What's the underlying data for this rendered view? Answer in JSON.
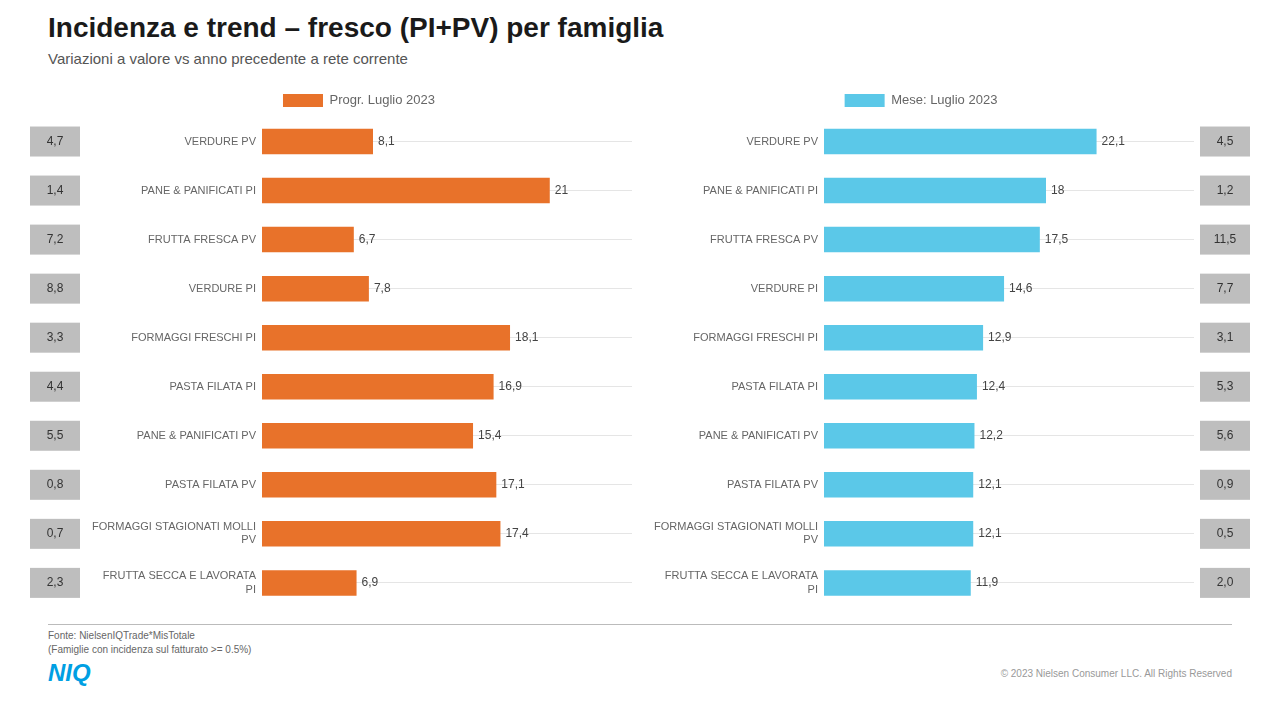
{
  "title": "Incidenza e trend – fresco (PI+PV) per famiglia",
  "subtitle": "Variazioni  a valore vs anno precedente a rete corrente",
  "annotations": [
    {
      "text": "Fonte: NielsenIQTrade*MisTotale\n(Famiglie con incidenza sul fatturato >= 0.5%)"
    },
    {
      "text": "NIQ",
      "color": "#009FE3"
    },
    {
      "text": "© 2023  Nielsen Consumer LLC. All Rights Reserved"
    }
  ],
  "chart_data": [
    {
      "type": "bar",
      "orientation": "horizontal",
      "categories": [
        "VERDURE PV",
        "PANE & PANIFICATI PI",
        "FRUTTA FRESCA PV",
        "VERDURE PI",
        "FORMAGGI FRESCHI PI",
        "PASTA FILATA PI",
        "PANE & PANIFICATI PV",
        "PASTA FILATA PV",
        "FORMAGGI STAGIONATI MOLLI\nPV",
        "FRUTTA SECCA E LAVORATA\nPI"
      ],
      "series": [
        {
          "name": "Progr. Luglio 2023",
          "color": "#E8722A",
          "values": [
            8.1,
            21,
            6.7,
            7.8,
            18.1,
            16.9,
            15.4,
            17.1,
            17.4,
            6.9
          ],
          "value_labels": [
            "8,1",
            "21",
            "6,7",
            "7,8",
            "18,1",
            "16,9",
            "15,4",
            "17,1",
            "17,4",
            "6,9"
          ]
        }
      ],
      "xlim": [
        0,
        27
      ],
      "data_labels": true,
      "tick_labels": "y",
      "grid": true,
      "legend": "top",
      "annotations": {
        "labels": [
          "4,7",
          "1,4",
          "7,2",
          "8,8",
          "3,3",
          "4,4",
          "5,5",
          "0,8",
          "0,7",
          "2,3"
        ],
        "color": "#BEBEBE"
      }
    },
    {
      "type": "bar",
      "orientation": "horizontal",
      "categories": [
        "VERDURE PV",
        "PANE & PANIFICATI PI",
        "FRUTTA FRESCA PV",
        "VERDURE PI",
        "FORMAGGI FRESCHI PI",
        "PASTA FILATA PI",
        "PANE & PANIFICATI PV",
        "PASTA FILATA PV",
        "FORMAGGI STAGIONATI MOLLI\nPV",
        "FRUTTA SECCA E LAVORATA\nPI"
      ],
      "series": [
        {
          "name": "Mese: Luglio 2023",
          "color": "#5BC8E8",
          "values": [
            22.1,
            18,
            17.5,
            14.6,
            12.9,
            12.4,
            12.2,
            12.1,
            12.1,
            11.9
          ],
          "value_labels": [
            "22,1",
            "18",
            "17,5",
            "14,6",
            "12,9",
            "12,4",
            "12,2",
            "12,1",
            "12,1",
            "11,9"
          ]
        }
      ],
      "xlim": [
        0,
        30
      ],
      "data_labels": true,
      "tick_labels": "y",
      "grid": true,
      "legend": "top",
      "annotations": {
        "labels": [
          "4,5",
          "1,2",
          "11,5",
          "7,7",
          "3,1",
          "5,3",
          "5,6",
          "0,9",
          "0,5",
          "2,0"
        ],
        "color": "#BEBEBE"
      }
    }
  ]
}
